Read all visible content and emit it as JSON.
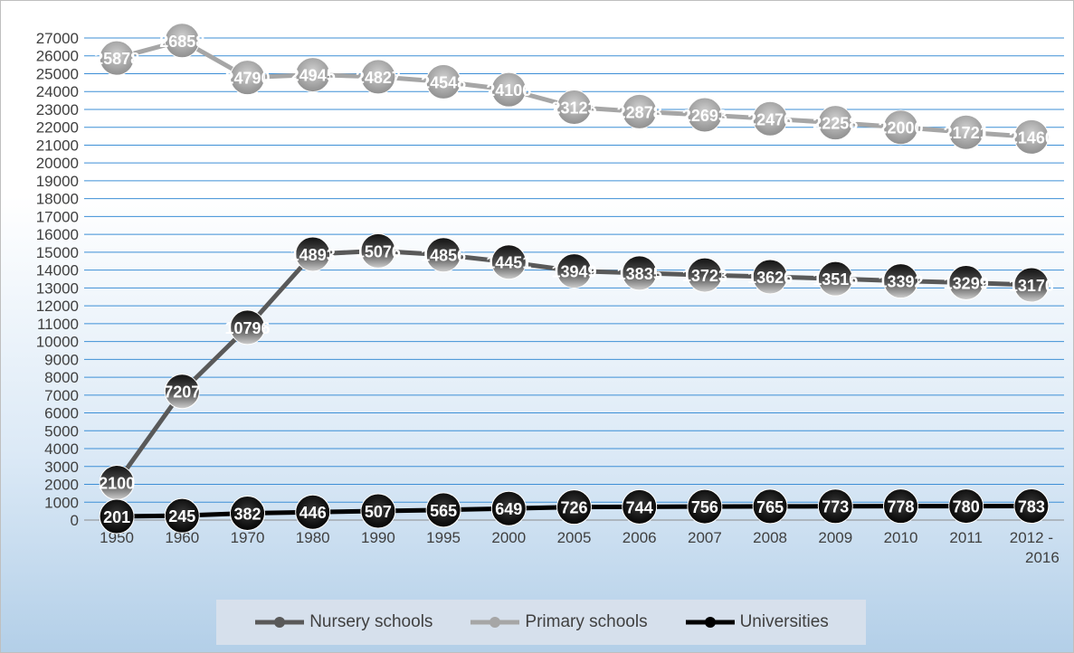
{
  "chart_data": {
    "type": "line",
    "title": "",
    "xlabel": "",
    "ylabel": "",
    "categories": [
      "1950",
      "1960",
      "1970",
      "1980",
      "1990",
      "1995",
      "2000",
      "2005",
      "2006",
      "2007",
      "2008",
      "2009",
      "2010",
      "2011",
      "2012 - 2016"
    ],
    "ylim": [
      0,
      27000
    ],
    "ytick_step": 1000,
    "grid": true,
    "legend_position": "bottom",
    "series": [
      {
        "name": "Nursery schools",
        "color": "#595959",
        "values": [
          2100,
          7207,
          10796,
          14893,
          15076,
          14856,
          14451,
          13949,
          13835,
          13723,
          13626,
          13516,
          13392,
          13299,
          13170
        ],
        "labels": [
          "2100",
          "7207",
          "10796",
          "14893",
          "15076",
          "14856",
          "14451",
          "13949",
          "13835",
          "13723",
          "13626",
          "13516",
          "13392",
          "13299",
          "13170"
        ]
      },
      {
        "name": "Primary schools",
        "color": "#a6a6a6",
        "values": [
          25878,
          26858,
          24790,
          24945,
          24827,
          24548,
          24106,
          23123,
          22878,
          22693,
          22476,
          22258,
          22000,
          21721,
          21460
        ],
        "labels": [
          "25878",
          "26858",
          "24790",
          "24945",
          "24827",
          "24548",
          "24106",
          "23123",
          "22878",
          "22693",
          "22476",
          "22258",
          "22000",
          "21721",
          "21460"
        ]
      },
      {
        "name": "Universities",
        "color": "#000000",
        "values": [
          201,
          245,
          382,
          446,
          507,
          565,
          649,
          726,
          744,
          756,
          765,
          773,
          778,
          780,
          783
        ],
        "labels": [
          "201",
          "245",
          "382",
          "446",
          "507",
          "565",
          "649",
          "726",
          "744",
          "756",
          "765",
          "773",
          "778",
          "780",
          "783"
        ]
      }
    ]
  }
}
